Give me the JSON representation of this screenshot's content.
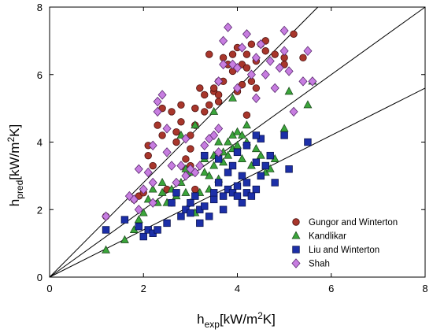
{
  "chart_data": {
    "type": "scatter",
    "xlim": [
      0,
      8
    ],
    "ylim": [
      0,
      8
    ],
    "xticks": [
      "0",
      "2",
      "4",
      "6",
      "8"
    ],
    "yticks": [
      "0",
      "2",
      "4",
      "6",
      "8"
    ],
    "grid": false,
    "legend_position": "bottom-right",
    "xlabel": {
      "main": "h",
      "sub": "exp",
      "mid": "[kW/m",
      "sup": "2",
      "end": "K]"
    },
    "ylabel": {
      "main": "h",
      "sub": "pred",
      "mid": "[kW/m",
      "sup": "2",
      "end": "K]"
    },
    "reference_lines": [
      {
        "slope": 1.4
      },
      {
        "slope": 1.0
      },
      {
        "slope": 0.7
      }
    ],
    "series": [
      {
        "name": "Gungor and Winterton",
        "marker": "circle",
        "fill": "#a8362b",
        "stroke": "#4a1010",
        "points": [
          [
            1.2,
            1.8
          ],
          [
            1.8,
            2.3
          ],
          [
            1.9,
            2.4
          ],
          [
            2.0,
            2.5
          ],
          [
            2.1,
            3.6
          ],
          [
            2.1,
            3.9
          ],
          [
            2.2,
            3.3
          ],
          [
            2.3,
            4.5
          ],
          [
            2.4,
            4.2
          ],
          [
            2.4,
            5.0
          ],
          [
            2.5,
            2.6
          ],
          [
            2.6,
            4.9
          ],
          [
            2.7,
            4.0
          ],
          [
            2.7,
            4.3
          ],
          [
            2.8,
            4.6
          ],
          [
            2.8,
            5.1
          ],
          [
            2.9,
            3.5
          ],
          [
            2.9,
            3.2
          ],
          [
            3.0,
            3.3
          ],
          [
            3.0,
            3.8
          ],
          [
            3.0,
            4.2
          ],
          [
            3.1,
            4.5
          ],
          [
            3.1,
            5.0
          ],
          [
            3.2,
            5.6
          ],
          [
            3.3,
            4.9
          ],
          [
            3.3,
            5.4
          ],
          [
            3.4,
            5.1
          ],
          [
            3.4,
            6.6
          ],
          [
            3.5,
            5.5
          ],
          [
            3.5,
            5.6
          ],
          [
            3.6,
            5.8
          ],
          [
            3.6,
            5.4
          ],
          [
            3.7,
            5.8
          ],
          [
            3.7,
            6.5
          ],
          [
            3.8,
            6.3
          ],
          [
            3.8,
            6.3
          ],
          [
            3.9,
            6.6
          ],
          [
            3.9,
            6.1
          ],
          [
            4.0,
            5.5
          ],
          [
            4.0,
            6.8
          ],
          [
            4.1,
            6.3
          ],
          [
            4.1,
            5.7
          ],
          [
            4.2,
            6.2
          ],
          [
            4.2,
            6.6
          ],
          [
            4.3,
            6.9
          ],
          [
            4.3,
            5.8
          ],
          [
            4.4,
            5.6
          ],
          [
            4.4,
            6.4
          ],
          [
            4.5,
            6.9
          ],
          [
            4.6,
            6.7
          ],
          [
            4.6,
            7.0
          ],
          [
            4.8,
            6.6
          ],
          [
            5.0,
            6.3
          ],
          [
            5.0,
            6.5
          ],
          [
            5.2,
            7.2
          ],
          [
            5.4,
            6.5
          ],
          [
            3.1,
            2.6
          ],
          [
            2.6,
            2.2
          ],
          [
            4.2,
            4.8
          ],
          [
            3.6,
            5.2
          ]
        ]
      },
      {
        "name": "Kandlikar",
        "marker": "triangle",
        "fill": "#3aa53a",
        "stroke": "#1e4d1e",
        "points": [
          [
            1.2,
            0.8
          ],
          [
            1.6,
            1.1
          ],
          [
            1.8,
            1.4
          ],
          [
            1.9,
            1.7
          ],
          [
            2.0,
            1.9
          ],
          [
            2.1,
            2.3
          ],
          [
            2.2,
            2.6
          ],
          [
            2.3,
            2.2
          ],
          [
            2.4,
            2.5
          ],
          [
            2.5,
            2.2
          ],
          [
            2.6,
            2.6
          ],
          [
            2.7,
            2.4
          ],
          [
            2.8,
            2.8
          ],
          [
            2.9,
            2.5
          ],
          [
            3.0,
            2.2
          ],
          [
            3.0,
            3.1
          ],
          [
            3.1,
            1.9
          ],
          [
            3.2,
            2.5
          ],
          [
            3.3,
            3.1
          ],
          [
            3.3,
            3.5
          ],
          [
            3.4,
            2.6
          ],
          [
            3.4,
            3.0
          ],
          [
            3.5,
            3.6
          ],
          [
            3.5,
            3.3
          ],
          [
            3.6,
            4.0
          ],
          [
            3.6,
            2.9
          ],
          [
            3.7,
            3.7
          ],
          [
            3.7,
            3.4
          ],
          [
            3.8,
            4.0
          ],
          [
            3.8,
            3.6
          ],
          [
            3.9,
            4.2
          ],
          [
            3.9,
            3.8
          ],
          [
            4.0,
            4.3
          ],
          [
            4.0,
            3.9
          ],
          [
            4.1,
            3.5
          ],
          [
            4.1,
            4.2
          ],
          [
            4.2,
            4.0
          ],
          [
            4.2,
            4.5
          ],
          [
            4.3,
            3.3
          ],
          [
            4.4,
            3.8
          ],
          [
            4.5,
            3.6
          ],
          [
            4.6,
            3.1
          ],
          [
            4.7,
            3.2
          ],
          [
            4.8,
            3.5
          ],
          [
            5.0,
            4.4
          ],
          [
            5.1,
            5.5
          ],
          [
            5.5,
            5.1
          ],
          [
            5.6,
            5.8
          ],
          [
            2.9,
            3.2
          ],
          [
            2.4,
            2.8
          ],
          [
            3.1,
            4.5
          ],
          [
            2.8,
            4.2
          ],
          [
            3.5,
            4.9
          ],
          [
            3.9,
            5.3
          ]
        ]
      },
      {
        "name": "Liu and Winterton",
        "marker": "square",
        "fill": "#1c2fa8",
        "stroke": "#0a1250",
        "points": [
          [
            1.2,
            1.4
          ],
          [
            1.6,
            1.7
          ],
          [
            1.9,
            1.5
          ],
          [
            2.0,
            1.2
          ],
          [
            2.1,
            1.4
          ],
          [
            2.2,
            1.3
          ],
          [
            2.3,
            1.4
          ],
          [
            2.5,
            1.6
          ],
          [
            2.6,
            2.2
          ],
          [
            2.8,
            1.8
          ],
          [
            2.9,
            2.0
          ],
          [
            3.0,
            1.9
          ],
          [
            3.0,
            2.2
          ],
          [
            3.1,
            2.4
          ],
          [
            3.2,
            1.6
          ],
          [
            3.2,
            2.0
          ],
          [
            3.3,
            2.1
          ],
          [
            3.4,
            1.8
          ],
          [
            3.5,
            2.3
          ],
          [
            3.5,
            2.5
          ],
          [
            3.6,
            2.8
          ],
          [
            3.6,
            3.5
          ],
          [
            3.7,
            2.0
          ],
          [
            3.7,
            2.4
          ],
          [
            3.8,
            2.6
          ],
          [
            3.8,
            3.1
          ],
          [
            3.9,
            2.5
          ],
          [
            3.9,
            3.3
          ],
          [
            4.0,
            2.4
          ],
          [
            4.0,
            2.7
          ],
          [
            4.0,
            3.7
          ],
          [
            4.1,
            2.2
          ],
          [
            4.1,
            3.0
          ],
          [
            4.2,
            2.5
          ],
          [
            4.2,
            2.8
          ],
          [
            4.2,
            3.9
          ],
          [
            4.3,
            2.4
          ],
          [
            4.4,
            2.6
          ],
          [
            4.4,
            3.4
          ],
          [
            4.5,
            3.0
          ],
          [
            4.5,
            4.1
          ],
          [
            4.6,
            3.3
          ],
          [
            4.7,
            3.6
          ],
          [
            4.8,
            2.8
          ],
          [
            5.0,
            4.2
          ],
          [
            5.1,
            3.2
          ],
          [
            5.5,
            4.0
          ],
          [
            2.7,
            2.5
          ],
          [
            3.3,
            3.6
          ],
          [
            4.4,
            4.2
          ]
        ]
      },
      {
        "name": "Shah",
        "marker": "diamond",
        "fill": "#c77de0",
        "stroke": "#5a2a70",
        "points": [
          [
            1.2,
            1.8
          ],
          [
            1.7,
            2.4
          ],
          [
            1.8,
            2.3
          ],
          [
            1.9,
            3.2
          ],
          [
            2.0,
            2.6
          ],
          [
            2.1,
            3.1
          ],
          [
            2.2,
            2.8
          ],
          [
            2.2,
            3.9
          ],
          [
            2.3,
            4.9
          ],
          [
            2.3,
            5.2
          ],
          [
            2.4,
            5.4
          ],
          [
            2.5,
            3.7
          ],
          [
            2.6,
            3.3
          ],
          [
            2.7,
            2.8
          ],
          [
            2.8,
            3.3
          ],
          [
            2.9,
            3.0
          ],
          [
            3.0,
            3.2
          ],
          [
            3.1,
            3.1
          ],
          [
            3.2,
            3.3
          ],
          [
            3.3,
            3.9
          ],
          [
            3.4,
            4.1
          ],
          [
            3.5,
            4.2
          ],
          [
            3.6,
            4.4
          ],
          [
            3.6,
            5.8
          ],
          [
            3.7,
            6.3
          ],
          [
            3.7,
            7.0
          ],
          [
            3.8,
            7.4
          ],
          [
            3.9,
            6.3
          ],
          [
            4.0,
            5.6
          ],
          [
            4.0,
            6.2
          ],
          [
            4.1,
            6.8
          ],
          [
            4.2,
            7.2
          ],
          [
            4.3,
            6.0
          ],
          [
            4.4,
            5.3
          ],
          [
            4.4,
            6.5
          ],
          [
            4.5,
            6.9
          ],
          [
            4.6,
            6.0
          ],
          [
            4.7,
            6.4
          ],
          [
            4.8,
            5.6
          ],
          [
            4.9,
            6.2
          ],
          [
            5.0,
            6.7
          ],
          [
            5.0,
            7.3
          ],
          [
            5.1,
            6.1
          ],
          [
            5.2,
            4.9
          ],
          [
            5.4,
            5.8
          ],
          [
            5.5,
            6.7
          ],
          [
            5.6,
            5.8
          ],
          [
            2.2,
            2.2
          ],
          [
            1.9,
            2.0
          ],
          [
            3.6,
            3.7
          ],
          [
            2.5,
            4.4
          ],
          [
            2.9,
            4.1
          ]
        ]
      }
    ]
  }
}
